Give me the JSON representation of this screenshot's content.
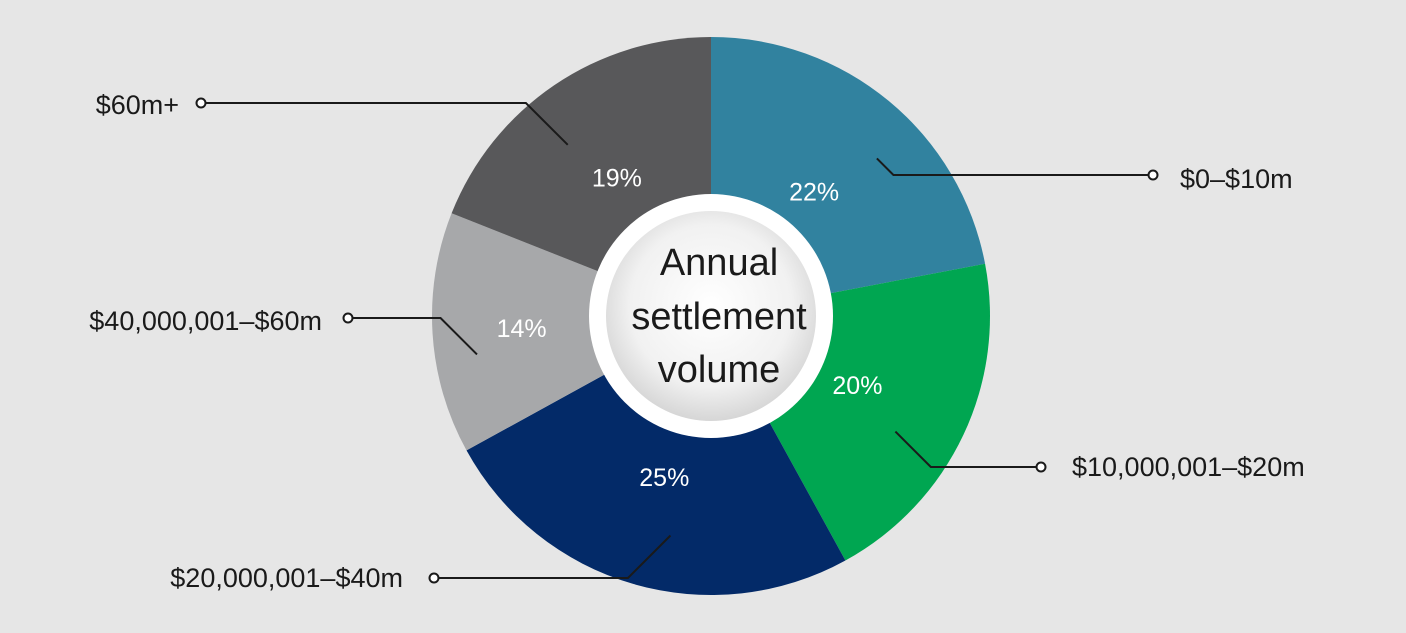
{
  "chart_data": {
    "type": "pie",
    "title": "Annual settlement volume",
    "title_lines": [
      "Annual",
      "settlement",
      "volume"
    ],
    "unit": "%",
    "slices": [
      {
        "label": "$0–$10m",
        "value": 22,
        "display": "22%",
        "color": "#31829f"
      },
      {
        "label": "$10,000,001–$20m",
        "value": 20,
        "display": "20%",
        "color": "#00a651"
      },
      {
        "label": "$20,000,001–$40m",
        "value": 25,
        "display": "25%",
        "color": "#032a68"
      },
      {
        "label": "$40,000,001–$60m",
        "value": 14,
        "display": "14%",
        "color": "#a7a8aa"
      },
      {
        "label": "$60m+",
        "value": 19,
        "display": "19%",
        "color": "#58585a"
      }
    ],
    "legend": "none",
    "grid": false
  }
}
